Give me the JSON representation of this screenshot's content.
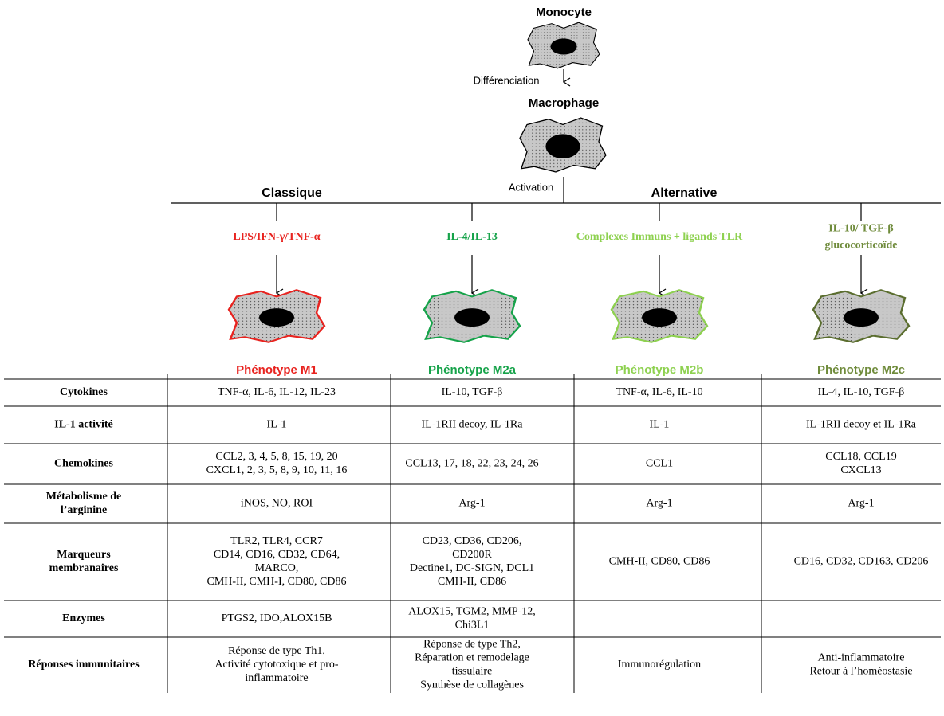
{
  "header": {
    "monocyte": "Monocyte",
    "differentiation": "Différenciation",
    "macrophage": "Macrophage",
    "activation": "Activation",
    "classic": "Classique",
    "alternative": "Alternative"
  },
  "branches": [
    {
      "stimulus": [
        "LPS/IFN-γ/TNF-α"
      ],
      "phenotype": "Phénotype M1"
    },
    {
      "stimulus": [
        "IL-4/IL-13"
      ],
      "phenotype": "Phénotype M2a"
    },
    {
      "stimulus": [
        "Complexes Immuns + ligands TLR"
      ],
      "phenotype": "Phénotype M2b"
    },
    {
      "stimulus": [
        "IL-10/ TGF-β",
        "glucocorticoïde"
      ],
      "phenotype": "Phénotype M2c"
    }
  ],
  "table": {
    "rows": [
      {
        "label": [
          "Cytokines"
        ],
        "cells": [
          [
            "TNF-α, IL-6, IL-12, IL-23"
          ],
          [
            "IL-10, TGF-β"
          ],
          [
            "TNF-α, IL-6, IL-10"
          ],
          [
            "IL-4, IL-10, TGF-β"
          ]
        ]
      },
      {
        "label": [
          "IL-1 activité"
        ],
        "cells": [
          [
            "IL-1"
          ],
          [
            "IL-1RII decoy, IL-1Ra"
          ],
          [
            "IL-1"
          ],
          [
            "IL-1RII decoy et IL-1Ra"
          ]
        ]
      },
      {
        "label": [
          "Chemokines"
        ],
        "cells": [
          [
            "CCL2, 3, 4, 5, 8, 15, 19, 20",
            "CXCL1, 2, 3, 5, 8, 9, 10, 11, 16"
          ],
          [
            "CCL13, 17, 18, 22, 23, 24, 26"
          ],
          [
            "CCL1"
          ],
          [
            "CCL18, CCL19",
            "CXCL13"
          ]
        ]
      },
      {
        "label": [
          "Métabolisme de",
          "l’arginine"
        ],
        "cells": [
          [
            "iNOS, NO, ROI"
          ],
          [
            "Arg-1"
          ],
          [
            "Arg-1"
          ],
          [
            "Arg-1"
          ]
        ]
      },
      {
        "label": [
          "Marqueurs",
          "membranaires"
        ],
        "cells": [
          [
            "TLR2, TLR4, CCR7",
            "CD14, CD16, CD32, CD64,",
            "MARCO,",
            "CMH-II, CMH-I, CD80, CD86"
          ],
          [
            "CD23, CD36, CD206,",
            "CD200R",
            "Dectine1, DC-SIGN,  DCL1",
            "CMH-II, CD86"
          ],
          [
            "CMH-II, CD80, CD86"
          ],
          [
            "CD16, CD32, CD163, CD206"
          ]
        ]
      },
      {
        "label": [
          "Enzymes"
        ],
        "cells": [
          [
            "PTGS2, IDO,ALOX15B"
          ],
          [
            "ALOX15, TGM2, MMP-12,",
            "Chi3L1"
          ],
          [],
          []
        ]
      },
      {
        "label": [
          "Réponses immunitaires"
        ],
        "cells": [
          [
            "Réponse  de type Th1,",
            "Activité cytotoxique et pro-",
            "inflammatoire"
          ],
          [
            "Réponse de type Th2,",
            "Réparation et remodelage",
            "tissulaire",
            "Synthèse de collagènes"
          ],
          [
            "Immunorégulation"
          ],
          [
            "Anti-inflammatoire",
            "Retour à l’homéostasie"
          ]
        ]
      }
    ]
  }
}
